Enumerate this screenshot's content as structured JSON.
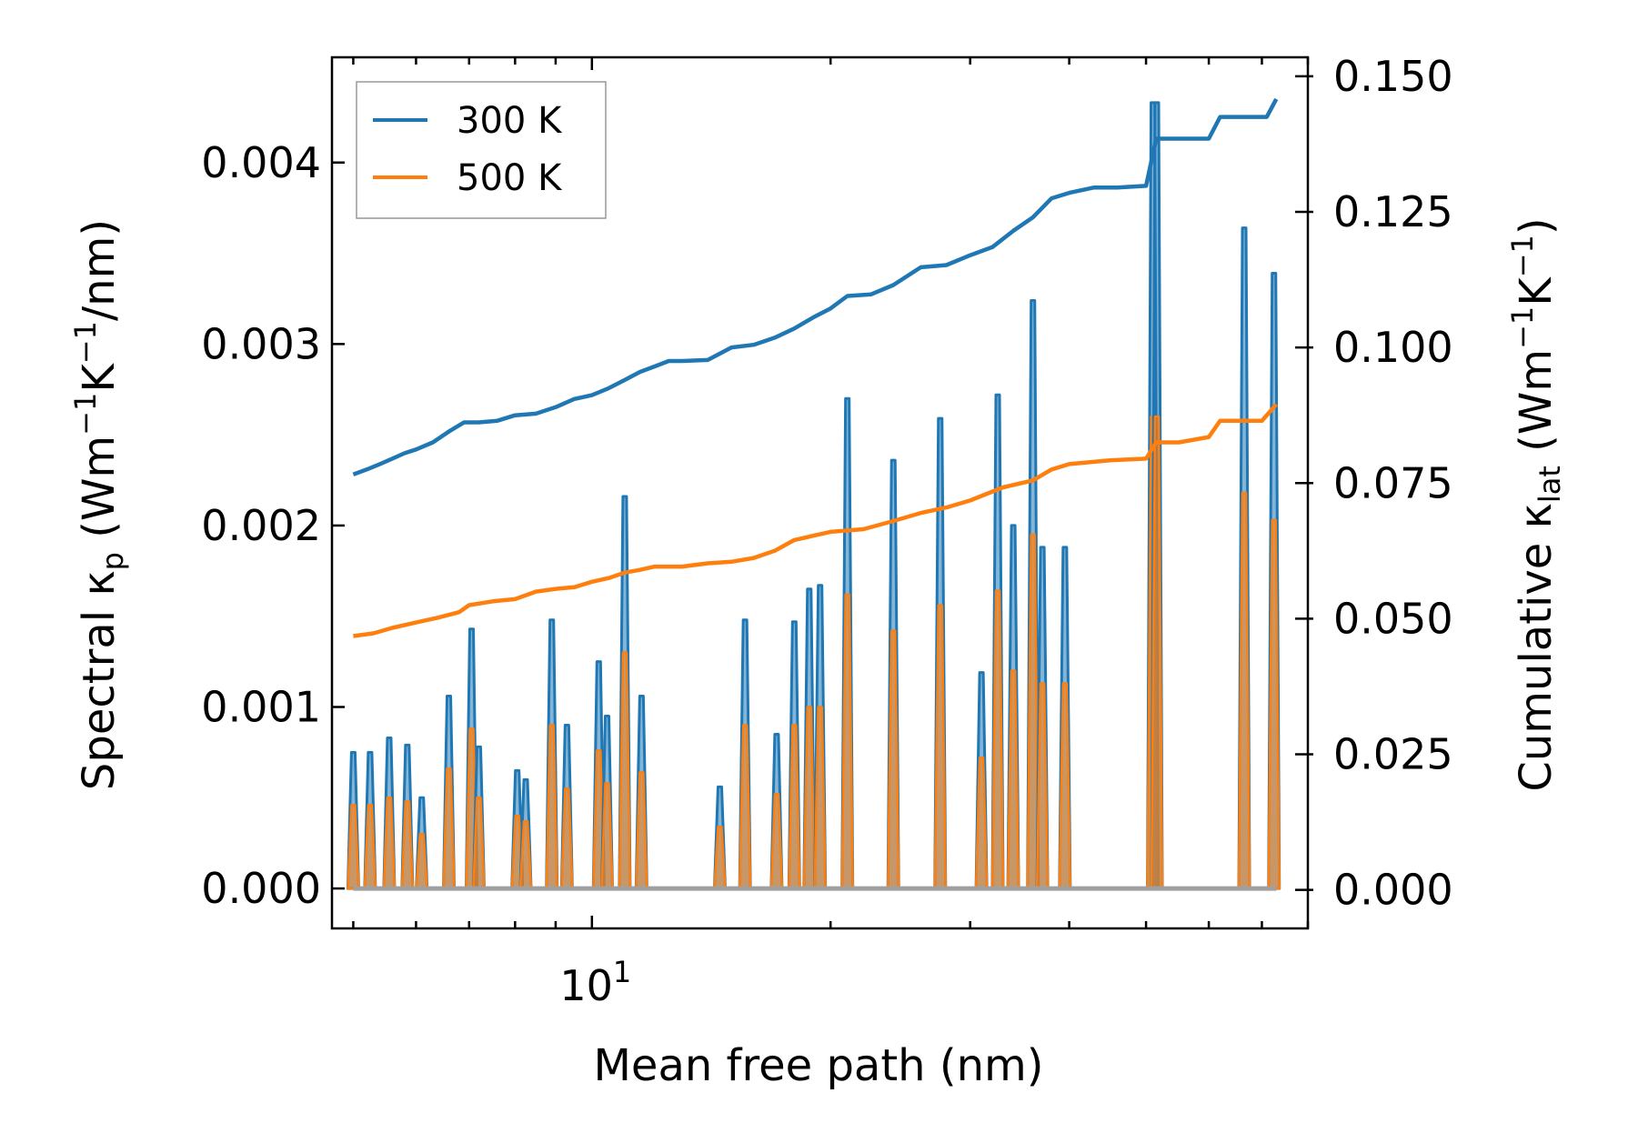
{
  "chart_data": {
    "type": "line",
    "title": "",
    "xlabel": "Mean free path (nm)",
    "ylabel_left_parts": {
      "pre": "Spectral κ",
      "sub": "p",
      "post_a": " (Wm",
      "sup1": "−1",
      "post_b": "K",
      "sup2": "−1",
      "post_c": "/nm)"
    },
    "ylabel_right_parts": {
      "pre": "Cumulative κ",
      "sub": "lat",
      "post_a": " (Wm",
      "sup1": "−1",
      "post_b": "K",
      "sup2": "−1",
      "post_c": ")"
    },
    "xscale": "log",
    "xlim": [
      4.7,
      80
    ],
    "x_tick_label": {
      "base": "10",
      "exp": "1"
    },
    "ylim_left": [
      -0.00022,
      0.00458
    ],
    "ylim_right": [
      -0.0071,
      0.1535
    ],
    "yticks_left": [
      "0.000",
      "0.001",
      "0.002",
      "0.003",
      "0.004"
    ],
    "yticks_right": [
      "0.000",
      "0.025",
      "0.050",
      "0.075",
      "0.100",
      "0.125",
      "0.150"
    ],
    "legend": {
      "position": "top-left",
      "entries": [
        "300 K",
        "500 K"
      ]
    },
    "colors": {
      "300 K": "#1f77b4",
      "500 K": "#ff7f0e"
    },
    "cumulative_series": [
      {
        "name": "300 K",
        "x": [
          5.0,
          5.2,
          5.4,
          5.6,
          5.8,
          6.0,
          6.3,
          6.6,
          6.9,
          7.2,
          7.6,
          8.0,
          8.5,
          9.0,
          9.5,
          10.0,
          10.5,
          11.0,
          11.5,
          12.0,
          12.5,
          13.0,
          14.0,
          15.0,
          16.0,
          17.0,
          18.0,
          19.0,
          20.0,
          21.0,
          22.5,
          24.0,
          26.0,
          28.0,
          30.0,
          32.0,
          34.0,
          36.0,
          38.0,
          40.0,
          43.0,
          46.0,
          50.0,
          51.5,
          55.0,
          60.0,
          62.0,
          67.0,
          71.0,
          73.0
        ],
        "y": [
          0.0766,
          0.0775,
          0.0785,
          0.0795,
          0.0805,
          0.0812,
          0.0825,
          0.0845,
          0.0862,
          0.0862,
          0.0865,
          0.0875,
          0.0878,
          0.089,
          0.0905,
          0.0912,
          0.0925,
          0.094,
          0.0955,
          0.0965,
          0.0975,
          0.0975,
          0.0977,
          0.1,
          0.1005,
          0.1018,
          0.1035,
          0.1055,
          0.1072,
          0.1095,
          0.1098,
          0.1115,
          0.1148,
          0.1152,
          0.117,
          0.1185,
          0.1215,
          0.124,
          0.1275,
          0.1285,
          0.1295,
          0.1295,
          0.1298,
          0.1385,
          0.1385,
          0.1385,
          0.1425,
          0.1425,
          0.1425,
          0.1458
        ]
      },
      {
        "name": "500 K",
        "x": [
          5.0,
          5.3,
          5.6,
          6.0,
          6.4,
          6.8,
          7.0,
          7.5,
          8.0,
          8.5,
          9.0,
          9.5,
          10.0,
          10.5,
          11.0,
          11.5,
          12.0,
          13.0,
          14.0,
          15.0,
          16.0,
          17.0,
          18.0,
          20.0,
          22.0,
          24.0,
          26.0,
          28.0,
          30.0,
          33.0,
          36.0,
          38.0,
          40.0,
          45.0,
          50.0,
          51.5,
          55.0,
          60.0,
          62.0,
          70.0,
          73.0
        ],
        "y": [
          0.0468,
          0.0473,
          0.0483,
          0.0493,
          0.0502,
          0.0512,
          0.0525,
          0.0532,
          0.0536,
          0.055,
          0.0555,
          0.0558,
          0.0568,
          0.0575,
          0.0585,
          0.059,
          0.0596,
          0.0596,
          0.0602,
          0.0605,
          0.0612,
          0.0625,
          0.0645,
          0.066,
          0.0665,
          0.068,
          0.0695,
          0.0705,
          0.0718,
          0.0742,
          0.0755,
          0.0775,
          0.0785,
          0.0792,
          0.0795,
          0.0825,
          0.0825,
          0.0835,
          0.0865,
          0.0865,
          0.0895
        ]
      }
    ],
    "spectral_peaks": {
      "x": [
        5.0,
        5.25,
        5.55,
        5.85,
        6.1,
        6.6,
        7.05,
        7.2,
        8.05,
        8.25,
        8.9,
        9.3,
        10.2,
        10.45,
        11.0,
        11.55,
        14.5,
        15.6,
        17.1,
        18.0,
        18.8,
        19.4,
        21.0,
        24.0,
        27.5,
        31.0,
        32.5,
        34.0,
        36.0,
        37.0,
        39.5,
        51.0,
        51.6,
        66.5,
        72.5
      ],
      "v300": [
        0.00075,
        0.00075,
        0.00083,
        0.00079,
        0.0005,
        0.00106,
        0.00143,
        0.00078,
        0.00065,
        0.0006,
        0.00148,
        0.0009,
        0.00125,
        0.00095,
        0.00216,
        0.00106,
        0.00056,
        0.00148,
        0.00085,
        0.00147,
        0.00165,
        0.00167,
        0.0027,
        0.00236,
        0.00259,
        0.00119,
        0.00272,
        0.002,
        0.00324,
        0.00188,
        0.00188,
        0.00433,
        0.00433,
        0.00364,
        0.00339
      ],
      "v500": [
        0.00046,
        0.00046,
        0.0005,
        0.00048,
        0.0003,
        0.00066,
        0.00088,
        0.0005,
        0.0004,
        0.00037,
        0.0009,
        0.00055,
        0.00076,
        0.00058,
        0.0013,
        0.00064,
        0.00034,
        0.0009,
        0.00052,
        0.0009,
        0.001,
        0.001,
        0.00162,
        0.00142,
        0.00156,
        0.00072,
        0.00164,
        0.0012,
        0.00195,
        0.00113,
        0.00113,
        0.0026,
        0.0026,
        0.00218,
        0.00203
      ]
    }
  }
}
